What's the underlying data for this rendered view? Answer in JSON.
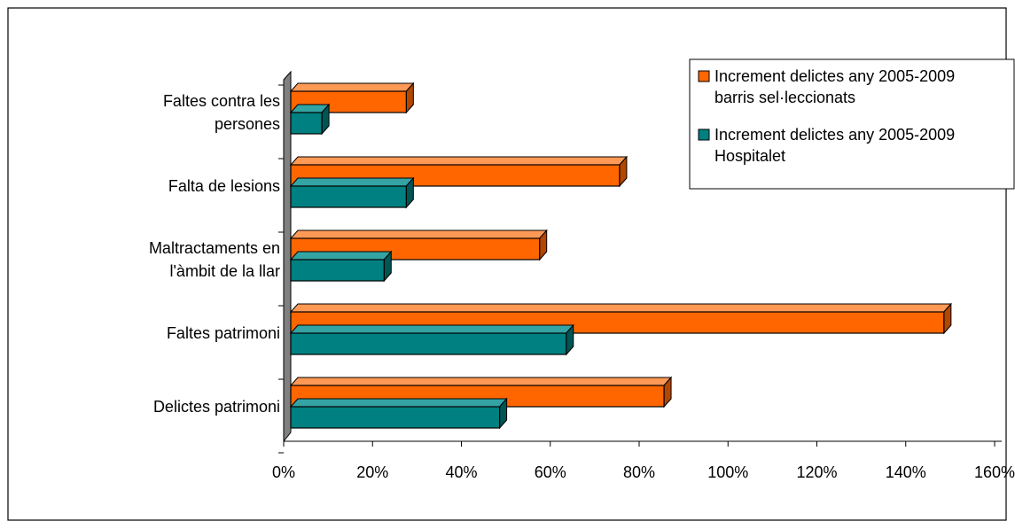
{
  "chart_data": {
    "type": "bar",
    "orientation": "horizontal",
    "style": "3d",
    "categories": [
      [
        "Faltes contra les",
        "persones"
      ],
      [
        "Falta de lesions"
      ],
      [
        "Maltractaments en",
        "l'àmbit de la llar"
      ],
      [
        "Faltes patrimoni"
      ],
      [
        "Delictes patrimoni"
      ]
    ],
    "series": [
      {
        "name": [
          "Increment delictes any 2005-2009",
          "barris sel·leccionats"
        ],
        "color": "#ff6600",
        "values": [
          26,
          74,
          56,
          147,
          84
        ]
      },
      {
        "name": [
          "Increment delictes any 2005-2009",
          "Hospitalet"
        ],
        "color": "#008080",
        "values": [
          7,
          26,
          21,
          62,
          47
        ]
      }
    ],
    "x_ticks": [
      "0%",
      "20%",
      "40%",
      "60%",
      "80%",
      "100%",
      "120%",
      "140%",
      "160%"
    ],
    "xlim": [
      0,
      160
    ],
    "unit": "%",
    "grid": false,
    "legend_position": "top-right",
    "wall_color": "#808080"
  }
}
